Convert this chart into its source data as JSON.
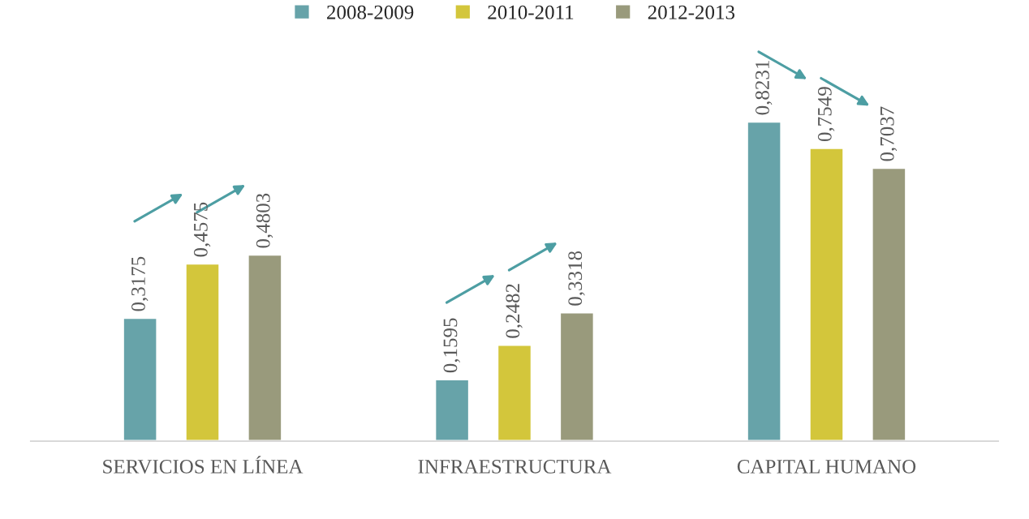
{
  "chart_data": {
    "type": "bar",
    "categories": [
      "SERVICIOS EN LÍNEA",
      "INFRAESTRUCTURA",
      "CAPITAL HUMANO"
    ],
    "series": [
      {
        "name": "2008-2009",
        "color": "#67a3a9",
        "values": [
          0.3175,
          0.1595,
          0.8231
        ],
        "value_labels": [
          "0,3175",
          "0,1595",
          "0,8231"
        ]
      },
      {
        "name": "2010-2011",
        "color": "#d3c63b",
        "values": [
          0.4575,
          0.2482,
          0.7549
        ],
        "value_labels": [
          "0,4575",
          "0,2482",
          "0,7549"
        ]
      },
      {
        "name": "2012-2013",
        "color": "#999a7c",
        "values": [
          0.4803,
          0.3318,
          0.7037
        ],
        "value_labels": [
          "0,4803",
          "0,3318",
          "0,7037"
        ]
      }
    ],
    "tick_labels": "x",
    "grid": false,
    "legend": "top"
  }
}
